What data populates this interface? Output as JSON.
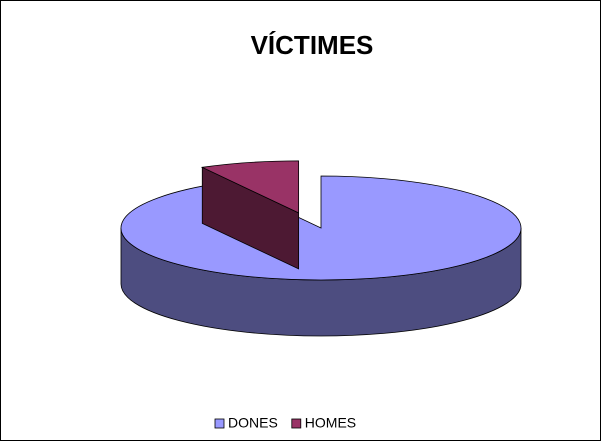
{
  "chart_data": {
    "type": "pie",
    "title": "VÍCTIMES",
    "categories": [
      "DONES",
      "HOMES"
    ],
    "values": [
      92,
      8
    ],
    "colors": [
      "#9999ff",
      "#993366"
    ],
    "side_colors": [
      "#4d4d80",
      "#4d1933"
    ],
    "explode": [
      false,
      true
    ],
    "legend": "bottom"
  }
}
